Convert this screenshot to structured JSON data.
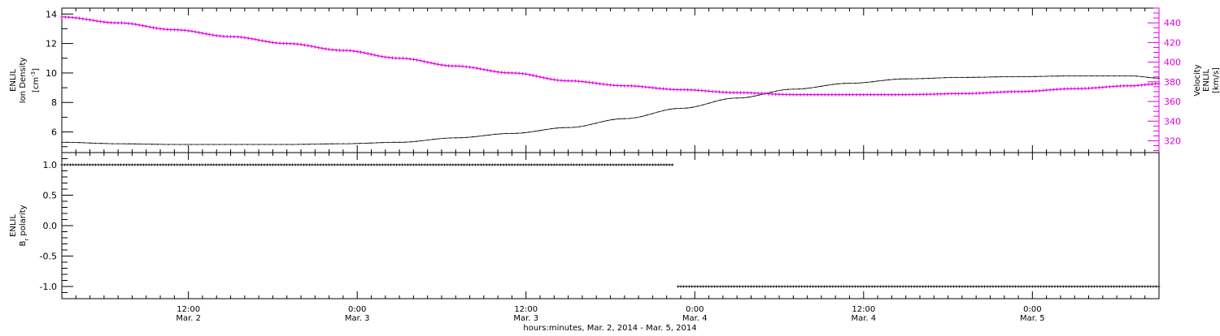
{
  "chart_data": [
    {
      "type": "scatter",
      "panel": "top",
      "xlabel": "hours:minutes, Mar. 2, 2014 - Mar. 5, 2014",
      "x_range_hours": [
        0,
        78
      ],
      "x_ticks": [
        {
          "t": 9,
          "time": "12:00",
          "date": "Mar. 2"
        },
        {
          "t": 21,
          "time": "0:00",
          "date": "Mar. 3"
        },
        {
          "t": 33,
          "time": "12:00",
          "date": "Mar. 3"
        },
        {
          "t": 45,
          "time": "0:00",
          "date": "Mar. 4"
        },
        {
          "t": 57,
          "time": "12:00",
          "date": "Mar. 4"
        },
        {
          "t": 69,
          "time": "0:00",
          "date": "Mar. 5"
        }
      ],
      "ylabel_left": {
        "line1": "ENLIL",
        "line2": "Ion Density",
        "unit": "[cm",
        "unit_sup": "-3",
        "unit_end": "]"
      },
      "ylim_left": [
        4.6,
        14.4
      ],
      "yticks_left": [
        6,
        8,
        10,
        12,
        14
      ],
      "ylabel_right": {
        "line1": "ENLIL",
        "line2": "Velocity",
        "unit": "[km/s]"
      },
      "ylim_right": [
        308,
        455
      ],
      "yticks_right": [
        320,
        340,
        360,
        380,
        400,
        420,
        440
      ],
      "right_axis_color": "#e000e0",
      "series": [
        {
          "color": "#000000",
          "axis": "left",
          "x": [
            0,
            4,
            8,
            12,
            16,
            20,
            24,
            28,
            32,
            36,
            40,
            44,
            48,
            52,
            56,
            60,
            64,
            68,
            72,
            76,
            78
          ],
          "y": [
            5.3,
            5.2,
            5.15,
            5.15,
            5.15,
            5.2,
            5.3,
            5.6,
            5.9,
            6.3,
            6.9,
            7.6,
            8.3,
            8.9,
            9.3,
            9.6,
            9.7,
            9.75,
            9.8,
            9.8,
            9.65
          ]
        },
        {
          "color": "#e000e0",
          "axis": "right",
          "x": [
            0,
            4,
            8,
            12,
            16,
            20,
            24,
            28,
            32,
            36,
            40,
            44,
            48,
            52,
            56,
            60,
            64,
            68,
            72,
            76,
            78
          ],
          "y": [
            446,
            440,
            433,
            426,
            419,
            412,
            404,
            396,
            389,
            381,
            376,
            372,
            369,
            367,
            367,
            367,
            368,
            370,
            373,
            376,
            378
          ]
        }
      ]
    },
    {
      "type": "scatter",
      "panel": "bottom",
      "ylabel_left": {
        "line1": "ENLIL",
        "line2": "B",
        "sub": "r",
        "line2_end": " polarity"
      },
      "ylim_left": [
        -1.2,
        1.2
      ],
      "yticks_left": [
        "1.0",
        "0.5",
        "0.0",
        "-0.5",
        "-1.0"
      ],
      "series": [
        {
          "color": "#000000",
          "x_start": 0,
          "x_end": 43.5,
          "y": 1.0
        },
        {
          "color": "#000000",
          "x_start": 43.8,
          "x_end": 78,
          "y": -1.0
        }
      ]
    }
  ]
}
